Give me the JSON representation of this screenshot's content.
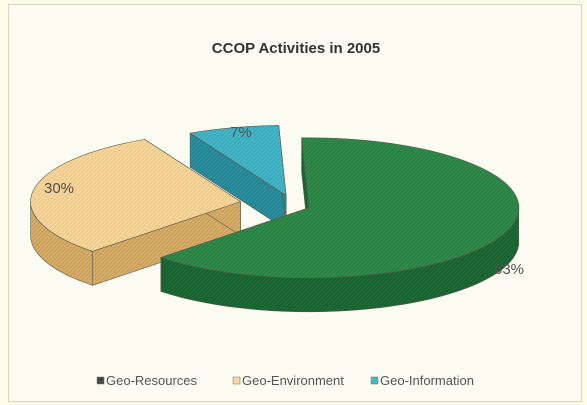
{
  "chart_data": {
    "type": "pie",
    "title": "CCOP Activities in 2005",
    "labels": [
      "Geo-Resources",
      "Geo-Environment",
      "Geo-Information"
    ],
    "values": [
      63,
      30,
      7
    ],
    "value_labels": [
      "63%",
      "30%",
      "7%"
    ],
    "colors": [
      "#2f8a4a",
      "#f8d79c",
      "#44b7c8"
    ],
    "legend_position": "bottom",
    "exploded": true,
    "three_d": true
  }
}
